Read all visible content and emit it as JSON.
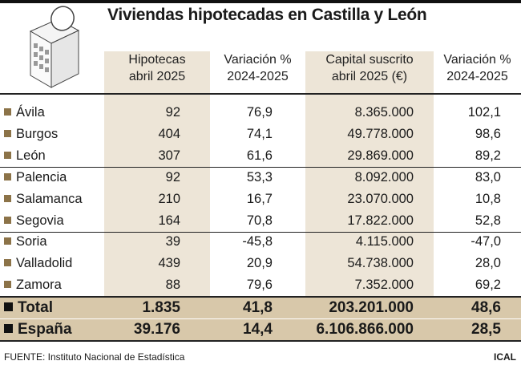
{
  "title": "Viviendas hipotecadas en Castilla y León",
  "icon": "building-with-coin-icon",
  "colors": {
    "column_shade": "#ede5d7",
    "total_shade": "#d8c8aa",
    "bullet": "#8c7348"
  },
  "chart_data": {
    "type": "table",
    "title": "Viviendas hipotecadas en Castilla y León",
    "columns": [
      "Hipotecas abril 2025",
      "Variación % 2024-2025",
      "Capital suscrito abril 2025 (€)",
      "Variación % 2024-2025"
    ],
    "headers": [
      [
        "Hipotecas",
        "abril 2025"
      ],
      [
        "Variación %",
        "2024-2025"
      ],
      [
        "Capital suscrito",
        "abril 2025 (€)"
      ],
      [
        "Variación %",
        "2024-2025"
      ]
    ],
    "rows": [
      {
        "name": "Ávila",
        "values": [
          "92",
          "76,9",
          "8.365.000",
          "102,1"
        ]
      },
      {
        "name": "Burgos",
        "values": [
          "404",
          "74,1",
          "49.778.000",
          "98,6"
        ]
      },
      {
        "name": "León",
        "values": [
          "307",
          "61,6",
          "29.869.000",
          "89,2"
        ]
      },
      {
        "name": "Palencia",
        "values": [
          "92",
          "53,3",
          "8.092.000",
          "83,0"
        ]
      },
      {
        "name": "Salamanca",
        "values": [
          "210",
          "16,7",
          "23.070.000",
          "10,8"
        ]
      },
      {
        "name": "Segovia",
        "values": [
          "164",
          "70,8",
          "17.822.000",
          "52,8"
        ]
      },
      {
        "name": "Soria",
        "values": [
          "39",
          "-45,8",
          "4.115.000",
          "-47,0"
        ]
      },
      {
        "name": "Valladolid",
        "values": [
          "439",
          "20,9",
          "54.738.000",
          "28,0"
        ]
      },
      {
        "name": "Zamora",
        "values": [
          "88",
          "79,6",
          "7.352.000",
          "69,2"
        ]
      }
    ],
    "totals": [
      {
        "name": "Total",
        "values": [
          "1.835",
          "41,8",
          "203.201.000",
          "48,6"
        ]
      },
      {
        "name": "España",
        "values": [
          "39.176",
          "14,4",
          "6.106.866.000",
          "28,5"
        ]
      }
    ]
  },
  "footer": {
    "source": "FUENTE: Instituto Nacional de Estadística",
    "credit": "ICAL"
  }
}
